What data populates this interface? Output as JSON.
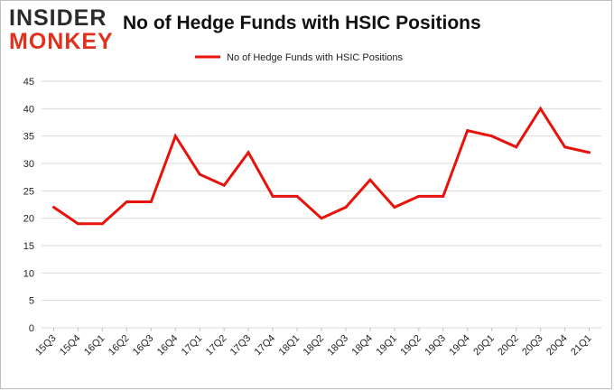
{
  "brand": {
    "line1": "INSIDER",
    "line2": "MONKEY"
  },
  "chart_data": {
    "type": "line",
    "title": "No of Hedge Funds with HSIC Positions",
    "xlabel": "",
    "ylabel": "",
    "categories": [
      "15Q3",
      "15Q4",
      "16Q1",
      "16Q2",
      "16Q3",
      "16Q4",
      "17Q1",
      "17Q2",
      "17Q3",
      "17Q4",
      "18Q1",
      "18Q2",
      "18Q3",
      "18Q4",
      "19Q1",
      "19Q2",
      "19Q3",
      "19Q4",
      "20Q1",
      "20Q2",
      "20Q3",
      "20Q4",
      "21Q1"
    ],
    "series": [
      {
        "name": "No of Hedge Funds with HSIC Positions",
        "color": "#e8120c",
        "values": [
          22,
          19,
          19,
          23,
          23,
          35,
          28,
          26,
          32,
          24,
          24,
          20,
          22,
          27,
          22,
          24,
          24,
          36,
          35,
          33,
          40,
          33,
          32
        ]
      }
    ],
    "ylim": [
      0,
      45
    ],
    "yticks": [
      0,
      5,
      10,
      15,
      20,
      25,
      30,
      35,
      40,
      45
    ],
    "grid": true,
    "legend": "top-center"
  }
}
